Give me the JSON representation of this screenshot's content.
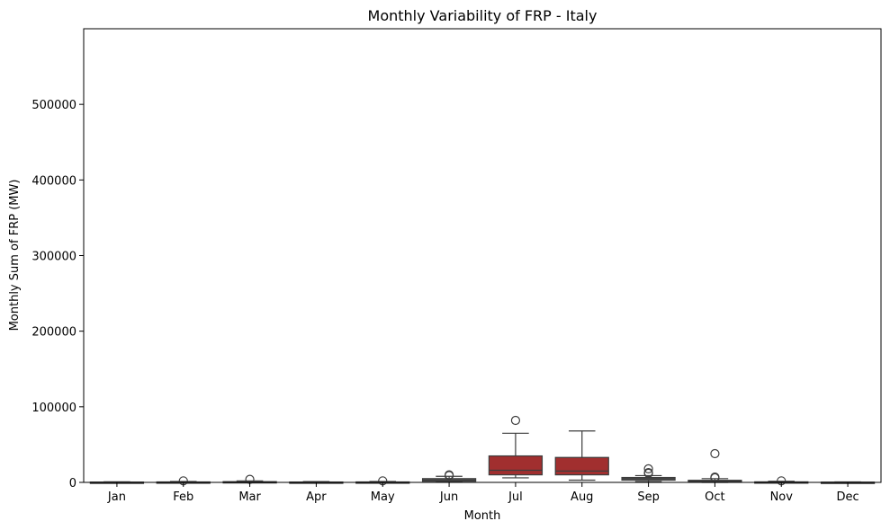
{
  "chart_data": {
    "type": "box",
    "title": "Monthly Variability of FRP - Italy",
    "xlabel": "Month",
    "ylabel": "Monthly Sum of FRP (MW)",
    "ylim": [
      0,
      600000
    ],
    "yticks": [
      0,
      100000,
      200000,
      300000,
      400000,
      500000
    ],
    "grid": false,
    "categories": [
      "Jan",
      "Feb",
      "Mar",
      "Apr",
      "May",
      "Jun",
      "Jul",
      "Aug",
      "Sep",
      "Oct",
      "Nov",
      "Dec"
    ],
    "boxes": [
      {
        "month": "Jan",
        "whisker_low": 0,
        "q1": 50,
        "median": 200,
        "q3": 400,
        "whisker_high": 800,
        "outliers": []
      },
      {
        "month": "Feb",
        "whisker_low": 0,
        "q1": 100,
        "median": 300,
        "q3": 600,
        "whisker_high": 1200,
        "outliers": [
          2000
        ]
      },
      {
        "month": "Mar",
        "whisker_low": 0,
        "q1": 200,
        "median": 500,
        "q3": 1000,
        "whisker_high": 2000,
        "outliers": [
          4000
        ]
      },
      {
        "month": "Apr",
        "whisker_low": 0,
        "q1": 100,
        "median": 300,
        "q3": 500,
        "whisker_high": 1000,
        "outliers": []
      },
      {
        "month": "May",
        "whisker_low": 0,
        "q1": 100,
        "median": 300,
        "q3": 600,
        "whisker_high": 1200,
        "outliers": [
          2000
        ]
      },
      {
        "month": "Jun",
        "whisker_low": 500,
        "q1": 1500,
        "median": 3000,
        "q3": 5000,
        "whisker_high": 8000,
        "outliers": [
          9000,
          10000
        ]
      },
      {
        "month": "Jul",
        "whisker_low": 6000,
        "q1": 10000,
        "median": 16000,
        "q3": 35000,
        "whisker_high": 65000,
        "outliers": [
          82000
        ]
      },
      {
        "month": "Aug",
        "whisker_low": 3000,
        "q1": 10000,
        "median": 15000,
        "q3": 33000,
        "whisker_high": 68000,
        "outliers": []
      },
      {
        "month": "Sep",
        "whisker_low": 1000,
        "q1": 3000,
        "median": 5000,
        "q3": 6500,
        "whisker_high": 9000,
        "outliers": [
          12000,
          13000,
          18000
        ]
      },
      {
        "month": "Oct",
        "whisker_low": 0,
        "q1": 500,
        "median": 1500,
        "q3": 2800,
        "whisker_high": 5000,
        "outliers": [
          6000,
          7000,
          38000
        ]
      },
      {
        "month": "Nov",
        "whisker_low": 0,
        "q1": 100,
        "median": 300,
        "q3": 700,
        "whisker_high": 1500,
        "outliers": [
          2000
        ]
      },
      {
        "month": "Dec",
        "whisker_low": 0,
        "q1": 50,
        "median": 150,
        "q3": 300,
        "whisker_high": 600,
        "outliers": []
      }
    ],
    "colors": {
      "box_default": "#5a5a5a",
      "box_highlight": "#a12f2f",
      "line": "#3d3d3d",
      "outlier_edge": "#3d3d3d"
    },
    "highlight_months": [
      "Jul",
      "Aug"
    ]
  }
}
